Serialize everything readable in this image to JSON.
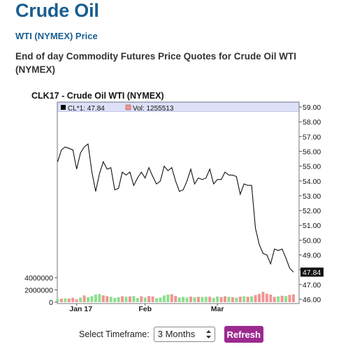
{
  "page": {
    "title": "Crude Oil",
    "subtitle": "WTI (NYMEX) Price",
    "description": "End of day Commodity Futures Price Quotes for Crude Oil WTI (NYMEX)"
  },
  "chart_data": {
    "type": "line",
    "title": "CLK17 - Crude Oil WTI (NYMEX)",
    "legend": {
      "close_label": "CL*1: 47.84",
      "volume_label": "Vol: 1255513",
      "placement": "top"
    },
    "price_axis": {
      "position": "right",
      "ylim": [
        46.0,
        59.0
      ],
      "ticks": [
        "59.00",
        "58.00",
        "57.00",
        "56.00",
        "55.00",
        "54.00",
        "53.00",
        "52.00",
        "51.00",
        "50.00",
        "49.00",
        "48.00",
        "47.00",
        "46.00"
      ],
      "last_value_label": "47.84",
      "last_value": 47.84
    },
    "volume_axis": {
      "position": "left",
      "ylim": [
        0,
        4000000
      ],
      "ticks": [
        "4000000",
        "2000000",
        "0"
      ]
    },
    "x_labels": [
      "Jan 17",
      "Feb",
      "Mar"
    ],
    "grid": false,
    "series": [
      {
        "values": [
          55.3,
          56.1,
          56.3,
          56.2,
          56.1,
          54.8,
          55.9,
          56.3,
          56.5,
          54.6,
          53.3,
          54.5,
          55.3,
          54.8,
          54.9,
          53.4,
          53.5,
          54.6,
          54.4,
          54.6,
          53.7,
          54.2,
          54.6,
          54.2,
          54.9,
          54.3,
          53.8,
          54.0,
          55.0,
          54.7,
          54.9,
          54.0,
          53.3,
          53.4,
          54.0,
          54.8,
          53.8,
          54.2,
          54.1,
          54.2,
          54.8,
          53.8,
          54.1,
          54.1,
          54.6,
          54.4,
          54.4,
          54.3,
          53.1,
          53.8,
          53.7,
          53.7,
          50.8,
          49.7,
          49.1,
          49.0,
          48.4,
          49.4,
          49.3,
          49.4,
          48.8,
          48.1,
          47.84
        ]
      },
      {
        "values": [
          520000,
          560000,
          610000,
          590000,
          720000,
          460000,
          750000,
          1100000,
          820000,
          980000,
          1250000,
          1320000,
          1100000,
          980000,
          870000,
          700000,
          820000,
          960000,
          890000,
          940000,
          1010000,
          680000,
          950000,
          760000,
          1000000,
          930000,
          640000,
          740000,
          1080000,
          1240000,
          1290000,
          1010000,
          780000,
          860000,
          760000,
          900000,
          790000,
          870000,
          840000,
          870000,
          880000,
          700000,
          930000,
          840000,
          970000,
          880000,
          820000,
          740000,
          900000,
          960000,
          880000,
          960000,
          1160000,
          1340000,
          1680000,
          1380000,
          1240000,
          860000,
          950000,
          1050000,
          990000,
          1180000,
          1255513
        ],
        "colors": [
          "#8ddf8d",
          "#f09595",
          "#8ddf8d",
          "#f09595",
          "#f09595",
          "#f09595",
          "#8ddf8d",
          "#f09595",
          "#8ddf8d",
          "#8ddf8d",
          "#8ddf8d",
          "#8ddf8d",
          "#f09595",
          "#f09595",
          "#8ddf8d",
          "#8ddf8d",
          "#8ddf8d",
          "#f09595",
          "#8ddf8d",
          "#f09595",
          "#8ddf8d",
          "#8ddf8d",
          "#f09595",
          "#8ddf8d",
          "#f09595",
          "#f09595",
          "#8ddf8d",
          "#8ddf8d",
          "#8ddf8d",
          "#8ddf8d",
          "#f09595",
          "#f09595",
          "#8ddf8d",
          "#8ddf8d",
          "#8ddf8d",
          "#f09595",
          "#8ddf8d",
          "#f09595",
          "#8ddf8d",
          "#8ddf8d",
          "#f09595",
          "#8ddf8d",
          "#8ddf8d",
          "#f09595",
          "#f09595",
          "#8ddf8d",
          "#f09595",
          "#8ddf8d",
          "#f09595",
          "#8ddf8d",
          "#f09595",
          "#8ddf8d",
          "#f09595",
          "#f09595",
          "#f09595",
          "#f09595",
          "#f09595",
          "#f09595",
          "#8ddf8d",
          "#f09595",
          "#8ddf8d",
          "#f09595",
          "#f09595"
        ]
      }
    ]
  },
  "controls": {
    "timeframe_label": "Select Timeframe:",
    "timeframe_value": "3 Months",
    "refresh_label": "Refresh"
  },
  "colors": {
    "title_blue": "#1a5e91",
    "legend_bg": "#dde0f7",
    "refresh_bg": "#9c2a8f",
    "price_line": "#111111"
  }
}
